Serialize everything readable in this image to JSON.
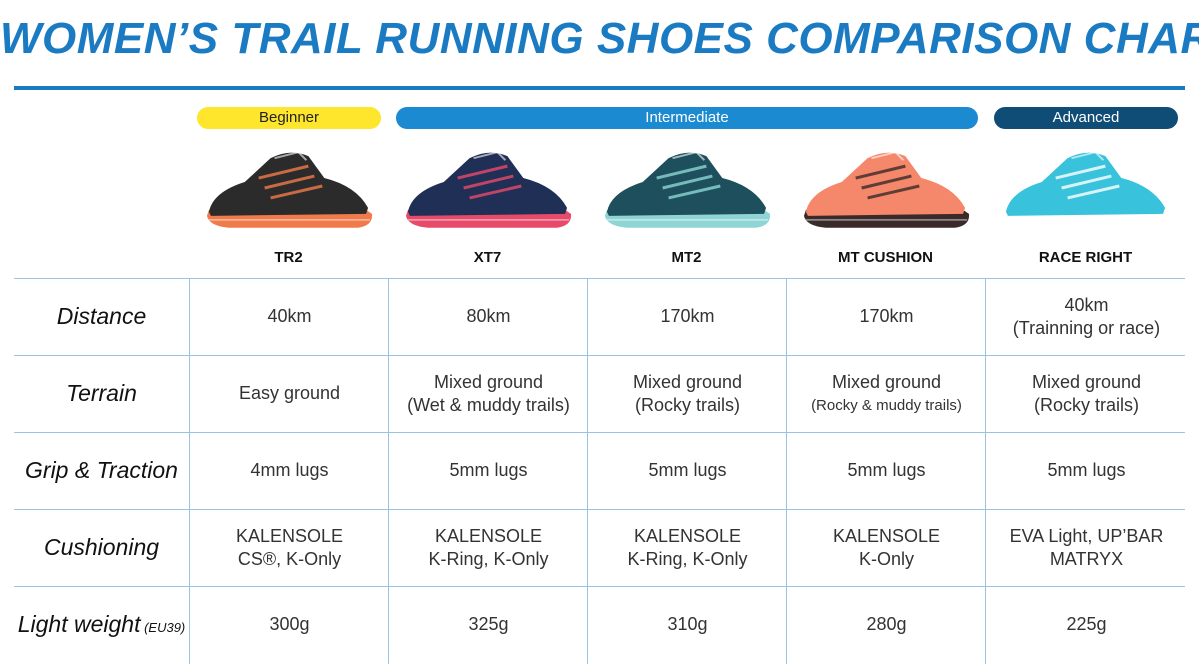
{
  "title": "WOMEN’S TRAIL RUNNING SHOES COMPARISON CHART",
  "levels": {
    "beginner": "Beginner",
    "intermediate": "Intermediate",
    "advanced": "Advanced"
  },
  "colors": {
    "title_blue": "#1b7bc2",
    "beginner_yellow": "#fde62b",
    "intermediate_blue": "#1b8ad0",
    "advanced_navy": "#0f4d77",
    "grid_line": "#9dc3e3"
  },
  "models": [
    "TR2",
    "XT7",
    "MT2",
    "MT CUSHION",
    "RACE RIGHT"
  ],
  "shoe_images": [
    {
      "name": "tr2-shoe-image",
      "colors": [
        "#2b2b2b",
        "#f07a4a"
      ]
    },
    {
      "name": "xt7-shoe-image",
      "colors": [
        "#1f2f55",
        "#e84a6a"
      ]
    },
    {
      "name": "mt2-shoe-image",
      "colors": [
        "#1d4f5c",
        "#8fd5d5"
      ]
    },
    {
      "name": "mt-cushion-shoe-image",
      "colors": [
        "#f5876a",
        "#3a2a2a"
      ]
    },
    {
      "name": "race-right-shoe-image",
      "colors": [
        "#39c2dc",
        "#ffffff"
      ]
    }
  ],
  "rows": [
    {
      "label": "Distance",
      "label_note": "",
      "cells": [
        [
          "40km"
        ],
        [
          "80km"
        ],
        [
          "170km"
        ],
        [
          "170km"
        ],
        [
          "40km",
          "(Trainning or race)"
        ]
      ]
    },
    {
      "label": "Terrain",
      "label_note": "",
      "cells": [
        [
          "Easy ground"
        ],
        [
          "Mixed ground",
          "(Wet & muddy trails)"
        ],
        [
          "Mixed ground",
          "(Rocky trails)"
        ],
        [
          "Mixed ground",
          "(Rocky & muddy trails)"
        ],
        [
          "Mixed ground",
          "(Rocky trails)"
        ]
      ]
    },
    {
      "label": "Grip & Traction",
      "label_note": "",
      "cells": [
        [
          "4mm lugs"
        ],
        [
          "5mm lugs"
        ],
        [
          "5mm lugs"
        ],
        [
          "5mm lugs"
        ],
        [
          "5mm lugs"
        ]
      ]
    },
    {
      "label": "Cushioning",
      "label_note": "",
      "cells": [
        [
          "KALENSOLE",
          "CS®, K-Only"
        ],
        [
          "KALENSOLE",
          "K-Ring, K-Only"
        ],
        [
          "KALENSOLE",
          "K-Ring, K-Only"
        ],
        [
          "KALENSOLE",
          "K-Only"
        ],
        [
          "EVA Light, UP’BAR",
          "MATRYX"
        ]
      ]
    },
    {
      "label": "Light weight",
      "label_note": "(EU39)",
      "cells": [
        [
          "300g"
        ],
        [
          "325g"
        ],
        [
          "310g"
        ],
        [
          "280g"
        ],
        [
          "225g"
        ]
      ]
    }
  ]
}
